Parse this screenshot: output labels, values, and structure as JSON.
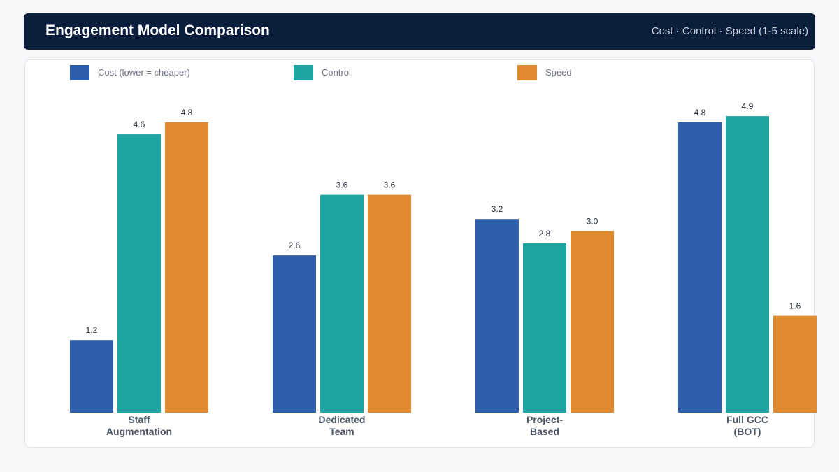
{
  "header": {
    "title": "Engagement Model Comparison",
    "subtitle": "Cost · Control · Speed (1-5 scale)"
  },
  "chart_data": {
    "type": "bar",
    "title": "Engagement Model Comparison",
    "subtitle": "Cost · Control · Speed (1-5 scale)",
    "categories": [
      [
        "Staff",
        "Augmentation"
      ],
      [
        "Dedicated",
        "Team"
      ],
      [
        "Project-",
        "Based"
      ],
      [
        "Full GCC",
        "(BOT)"
      ]
    ],
    "series": [
      {
        "name": "Cost (lower = cheaper)",
        "color": "#2f5faa",
        "values": [
          1.2,
          2.6,
          3.2,
          4.8
        ]
      },
      {
        "name": "Control",
        "color": "#1fa4a4",
        "values": [
          4.6,
          3.6,
          2.8,
          4.9
        ]
      },
      {
        "name": "Speed",
        "color": "#df8a2f",
        "values": [
          4.8,
          3.6,
          3.0,
          1.6
        ]
      }
    ],
    "ylim": [
      0,
      5
    ],
    "xlabel": "",
    "ylabel": "",
    "grid": false,
    "legend_position": "top"
  }
}
